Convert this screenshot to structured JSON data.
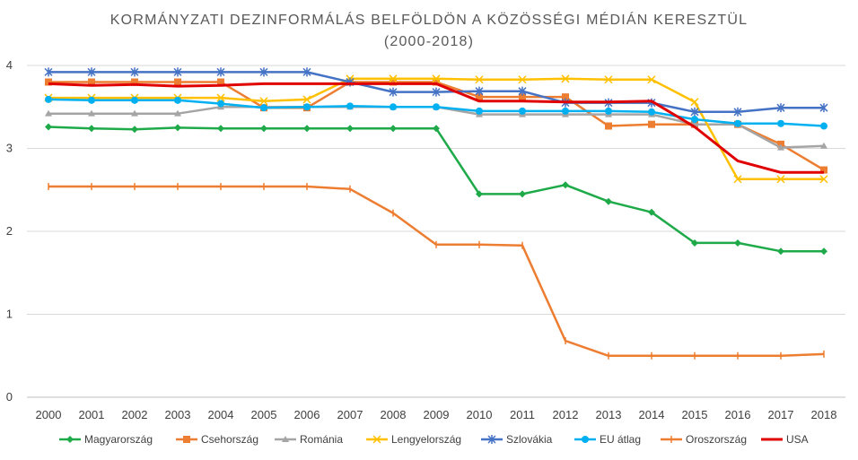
{
  "chart_data": {
    "type": "line",
    "title": "KORMÁNYZATI DEZINFORMÁLÁS BELFÖLDÖN A KÖZÖSSÉGI MÉDIÁN KERESZTÜL",
    "subtitle": "(2000-2018)",
    "xlabel": "",
    "ylabel": "",
    "x": [
      "2000",
      "2001",
      "2002",
      "2003",
      "2004",
      "2005",
      "2006",
      "2007",
      "2008",
      "2009",
      "2010",
      "2011",
      "2012",
      "2013",
      "2014",
      "2015",
      "2016",
      "2017",
      "2018"
    ],
    "ylim": [
      0,
      4
    ],
    "yticks": [
      "0",
      "1",
      "2",
      "3",
      "4"
    ],
    "grid": true,
    "legend_position": "bottom",
    "series": [
      {
        "name": "Magyarország",
        "color": "#1faa4a",
        "marker": "diamond",
        "values": [
          3.26,
          3.24,
          3.23,
          3.25,
          3.24,
          3.24,
          3.24,
          3.24,
          3.24,
          3.24,
          2.45,
          2.45,
          2.56,
          2.36,
          2.23,
          1.86,
          1.86,
          1.76,
          1.76
        ]
      },
      {
        "name": "Csehország",
        "color": "#ed7d31",
        "marker": "square",
        "values": [
          3.8,
          3.8,
          3.8,
          3.8,
          3.8,
          3.49,
          3.49,
          3.8,
          3.8,
          3.8,
          3.62,
          3.62,
          3.62,
          3.27,
          3.29,
          3.29,
          3.29,
          3.05,
          2.74
        ]
      },
      {
        "name": "Románia",
        "color": "#a5a5a5",
        "marker": "triangle",
        "values": [
          3.42,
          3.42,
          3.42,
          3.42,
          3.5,
          3.5,
          3.5,
          3.5,
          3.5,
          3.5,
          3.41,
          3.41,
          3.41,
          3.41,
          3.41,
          3.29,
          3.29,
          3.01,
          3.03
        ]
      },
      {
        "name": "Lengyelország",
        "color": "#ffc000",
        "marker": "x",
        "values": [
          3.61,
          3.61,
          3.61,
          3.61,
          3.61,
          3.57,
          3.59,
          3.84,
          3.84,
          3.84,
          3.83,
          3.83,
          3.84,
          3.83,
          3.83,
          3.56,
          2.63,
          2.63,
          2.63
        ]
      },
      {
        "name": "Szlovákia",
        "color": "#4472c4",
        "marker": "star",
        "values": [
          3.92,
          3.92,
          3.92,
          3.92,
          3.92,
          3.92,
          3.92,
          3.8,
          3.68,
          3.68,
          3.69,
          3.69,
          3.55,
          3.55,
          3.55,
          3.44,
          3.44,
          3.49,
          3.49
        ]
      },
      {
        "name": "EU átlag",
        "color": "#00b0f0",
        "marker": "circle",
        "values": [
          3.59,
          3.58,
          3.58,
          3.58,
          3.54,
          3.49,
          3.5,
          3.51,
          3.5,
          3.5,
          3.45,
          3.45,
          3.45,
          3.45,
          3.44,
          3.35,
          3.3,
          3.3,
          3.27
        ]
      },
      {
        "name": "Oroszország",
        "color": "#ed7d31",
        "marker": "plus",
        "values": [
          2.54,
          2.54,
          2.54,
          2.54,
          2.54,
          2.54,
          2.54,
          2.51,
          2.22,
          1.84,
          1.84,
          1.83,
          0.68,
          0.5,
          0.5,
          0.5,
          0.5,
          0.5,
          0.52
        ]
      },
      {
        "name": "USA",
        "color": "#e00000",
        "marker": "none",
        "values": [
          3.78,
          3.76,
          3.77,
          3.75,
          3.76,
          3.78,
          3.78,
          3.78,
          3.78,
          3.78,
          3.57,
          3.57,
          3.56,
          3.56,
          3.57,
          3.26,
          2.85,
          2.71,
          2.71
        ]
      }
    ]
  }
}
